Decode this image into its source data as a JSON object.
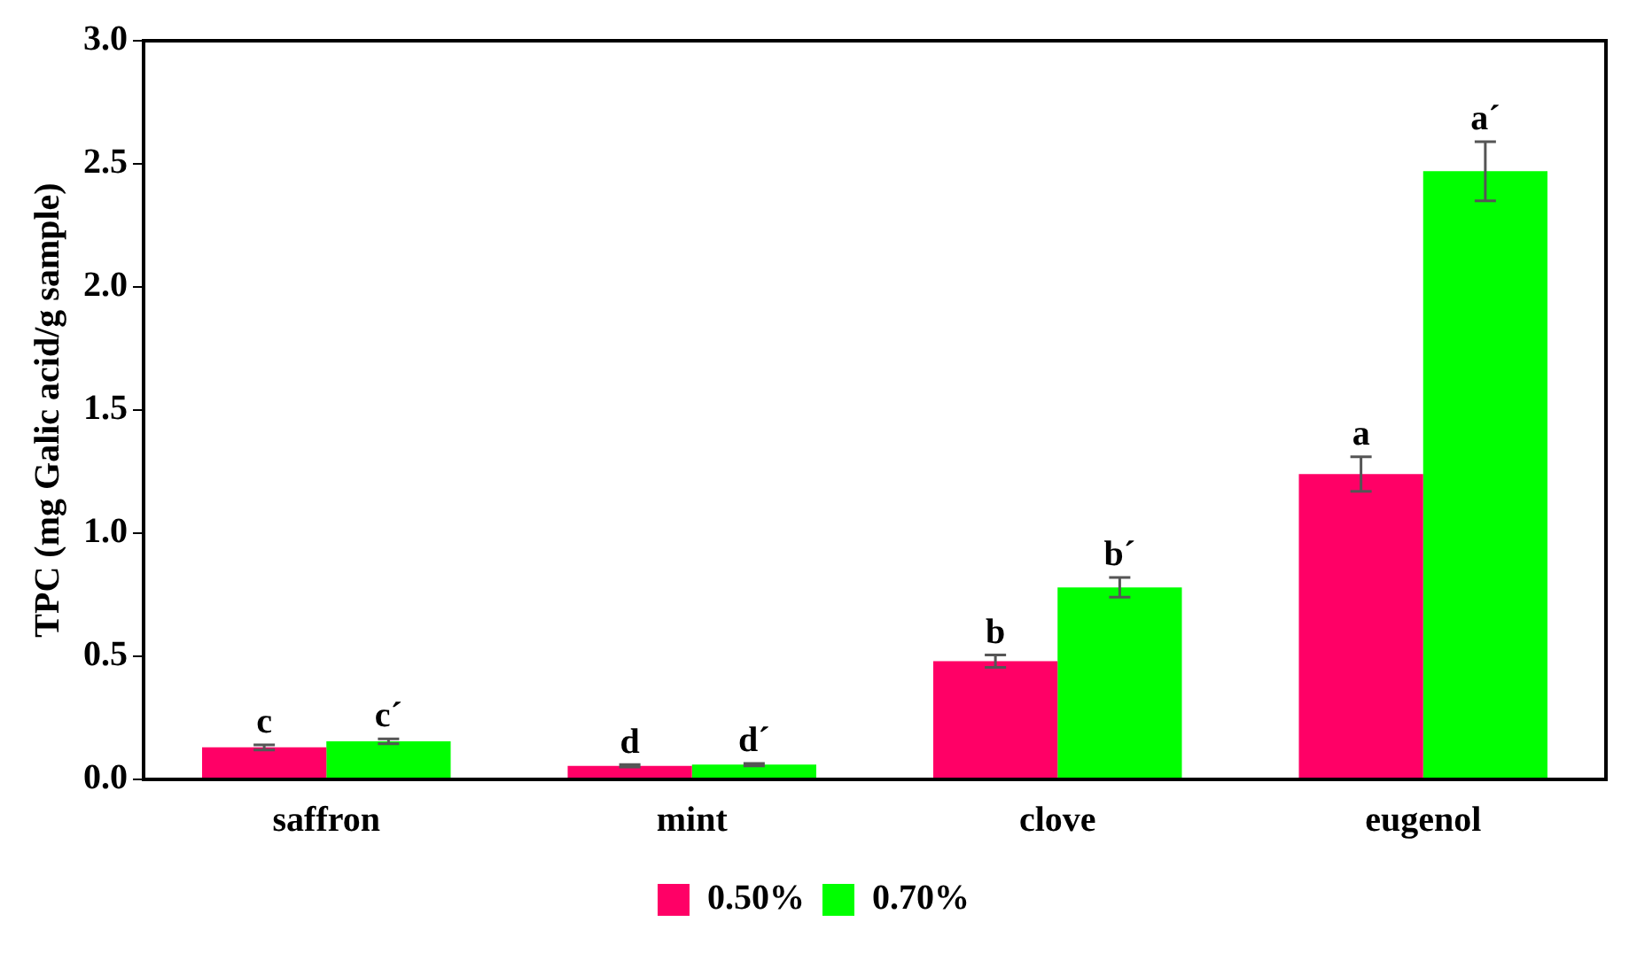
{
  "chart_data": {
    "type": "bar",
    "ylabel": "TPC (mg Galic acid/g sample)",
    "categories": [
      "saffron",
      "mint",
      "clove",
      "eugenol"
    ],
    "series": [
      {
        "name": "0.50%",
        "color": "#ff0066",
        "values": [
          0.13,
          0.055,
          0.48,
          1.24
        ],
        "errors": [
          0.01,
          0.005,
          0.025,
          0.07
        ],
        "value_labels": [
          "c",
          "d",
          "b",
          "a"
        ]
      },
      {
        "name": "0.70%",
        "color": "#00ff00",
        "values": [
          0.155,
          0.06,
          0.78,
          2.47
        ],
        "errors": [
          0.01,
          0.005,
          0.04,
          0.12
        ],
        "value_labels": [
          "c´",
          "d´",
          "b´",
          "a´"
        ]
      }
    ],
    "ylim": [
      0,
      3
    ],
    "yticks": [
      {
        "value": 0,
        "label": "0.0"
      },
      {
        "value": 0.5,
        "label": "0.5"
      },
      {
        "value": 1,
        "label": "1.0"
      },
      {
        "value": 1.5,
        "label": "1.5"
      },
      {
        "value": 2,
        "label": "2.0"
      },
      {
        "value": 2.5,
        "label": "2.5"
      },
      {
        "value": 3,
        "label": "3.0"
      }
    ],
    "grid": false,
    "legend": "bottom"
  }
}
